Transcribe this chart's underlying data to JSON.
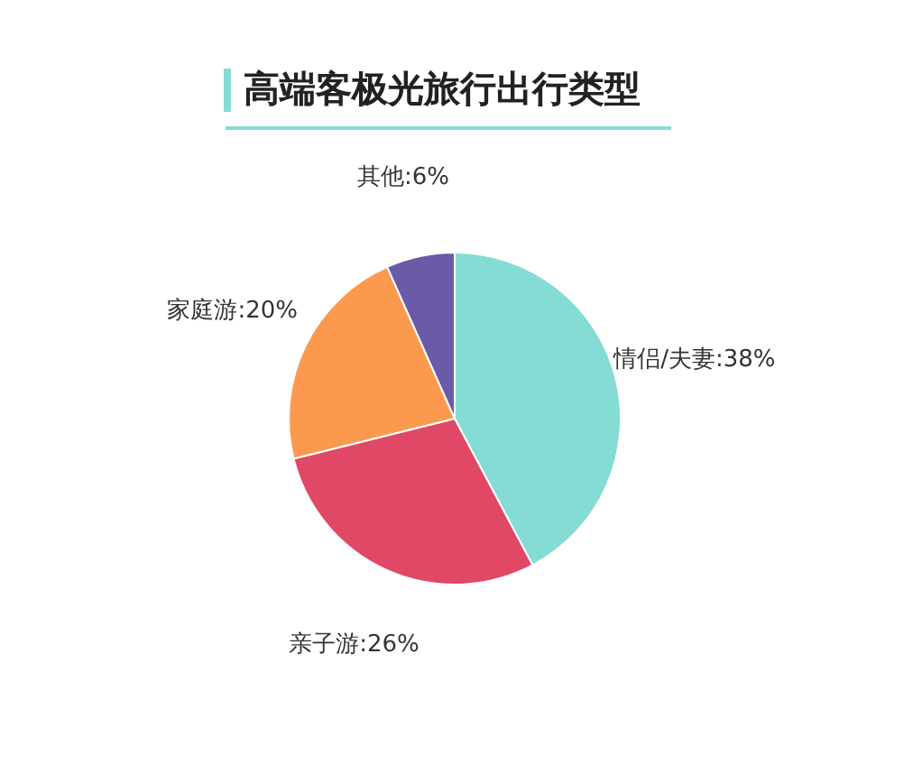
{
  "chart_data": {
    "type": "pie",
    "title": "高端客极光旅行出行类型",
    "categories": [
      "情侣/夫妻",
      "亲子游",
      "家庭游",
      "其他"
    ],
    "values": [
      38,
      26,
      20,
      6
    ],
    "value_labels": [
      "38%",
      "26%",
      "20%",
      "6%"
    ],
    "colors": [
      "#84dcd4",
      "#e04866",
      "#fb9a4e",
      "#6a5aa8"
    ]
  }
}
